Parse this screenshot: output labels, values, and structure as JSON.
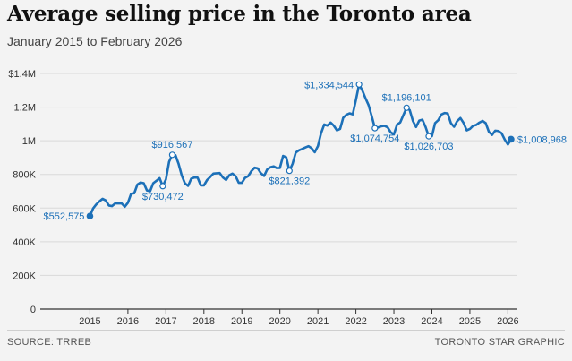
{
  "header": {
    "title": "Average selling price in the Toronto area",
    "subtitle": "January 2015 to February 2026"
  },
  "footer": {
    "source": "SOURCE: TRREB",
    "credit": "TORONTO STAR GRAPHIC"
  },
  "colors": {
    "line": "#1c70b8",
    "label": "#1c70b8",
    "grid": "#d9d9d9"
  },
  "chart_data": {
    "type": "line",
    "title": "Average selling price in the Toronto area",
    "subtitle": "January 2015 to February 2026",
    "xlabel": "",
    "ylabel": "",
    "xlim": [
      "2014-01",
      "2026-04"
    ],
    "ylim": [
      0,
      1400000
    ],
    "yticks": [
      0,
      200000,
      400000,
      600000,
      800000,
      1000000,
      1200000,
      1400000
    ],
    "ytick_labels": [
      "0",
      "200K",
      "400K",
      "600K",
      "800K",
      "1M",
      "1.2M",
      "$1.4M"
    ],
    "xtick_labels": [
      "2015",
      "2016",
      "2017",
      "2018",
      "2019",
      "2020",
      "2021",
      "2022",
      "2023",
      "2024",
      "2025",
      "2026"
    ],
    "grid": "horizontal",
    "series": [
      {
        "x": [
          "2015-01",
          "2015-02",
          "2015-03",
          "2015-04",
          "2015-05",
          "2015-06",
          "2015-07",
          "2015-08",
          "2015-09",
          "2015-10",
          "2015-11",
          "2015-12",
          "2016-01",
          "2016-02",
          "2016-03",
          "2016-04",
          "2016-05",
          "2016-06",
          "2016-07",
          "2016-08",
          "2016-09",
          "2016-10",
          "2016-11",
          "2016-12",
          "2017-01",
          "2017-02",
          "2017-03",
          "2017-04",
          "2017-05",
          "2017-06",
          "2017-07",
          "2017-08",
          "2017-09",
          "2017-10",
          "2017-11",
          "2017-12",
          "2018-01",
          "2018-02",
          "2018-03",
          "2018-04",
          "2018-05",
          "2018-06",
          "2018-07",
          "2018-08",
          "2018-09",
          "2018-10",
          "2018-11",
          "2018-12",
          "2019-01",
          "2019-02",
          "2019-03",
          "2019-04",
          "2019-05",
          "2019-06",
          "2019-07",
          "2019-08",
          "2019-09",
          "2019-10",
          "2019-11",
          "2019-12",
          "2020-01",
          "2020-02",
          "2020-03",
          "2020-04",
          "2020-05",
          "2020-06",
          "2020-07",
          "2020-08",
          "2020-09",
          "2020-10",
          "2020-11",
          "2020-12",
          "2021-01",
          "2021-02",
          "2021-03",
          "2021-04",
          "2021-05",
          "2021-06",
          "2021-07",
          "2021-08",
          "2021-09",
          "2021-10",
          "2021-11",
          "2021-12",
          "2022-01",
          "2022-02",
          "2022-03",
          "2022-04",
          "2022-05",
          "2022-06",
          "2022-07",
          "2022-08",
          "2022-09",
          "2022-10",
          "2022-11",
          "2022-12",
          "2023-01",
          "2023-02",
          "2023-03",
          "2023-04",
          "2023-05",
          "2023-06",
          "2023-07",
          "2023-08",
          "2023-09",
          "2023-10",
          "2023-11",
          "2023-12",
          "2024-01",
          "2024-02",
          "2024-03",
          "2024-04",
          "2024-05",
          "2024-06",
          "2024-07",
          "2024-08",
          "2024-09",
          "2024-10",
          "2024-11",
          "2024-12",
          "2025-01",
          "2025-02",
          "2025-03",
          "2025-04",
          "2025-05",
          "2025-06",
          "2025-07",
          "2025-08",
          "2025-09",
          "2025-10",
          "2025-11",
          "2025-12",
          "2026-01",
          "2026-02"
        ],
        "values": [
          552575,
          598000,
          622000,
          640000,
          655000,
          645000,
          615000,
          612000,
          628000,
          628000,
          628000,
          608000,
          632000,
          685000,
          688000,
          740000,
          752000,
          748000,
          705000,
          700000,
          748000,
          762000,
          778000,
          730472,
          770000,
          875000,
          916567,
          915000,
          863000,
          794000,
          747000,
          732000,
          775000,
          782000,
          781000,
          735000,
          735000,
          767000,
          785000,
          805000,
          807000,
          808000,
          782000,
          767000,
          795000,
          805000,
          790000,
          750000,
          750000,
          780000,
          790000,
          820000,
          840000,
          836000,
          807000,
          791000,
          830000,
          843000,
          848000,
          838000,
          839000,
          910000,
          902000,
          821392,
          863000,
          930000,
          943000,
          951000,
          960000,
          968000,
          956000,
          932000,
          968000,
          1045000,
          1097000,
          1090000,
          1108000,
          1090000,
          1062000,
          1070000,
          1137000,
          1155000,
          1163000,
          1157000,
          1242000,
          1334544,
          1300000,
          1254000,
          1212000,
          1146000,
          1074754,
          1079000,
          1086000,
          1089000,
          1080000,
          1050000,
          1038000,
          1096000,
          1109000,
          1153000,
          1196101,
          1182000,
          1118000,
          1082000,
          1120000,
          1125000,
          1082000,
          1026703,
          1026703,
          1105000,
          1122000,
          1156000,
          1165000,
          1162000,
          1105000,
          1083000,
          1117000,
          1135000,
          1106000,
          1062000,
          1070000,
          1089000,
          1094000,
          1108000,
          1118000,
          1105000,
          1053000,
          1035000,
          1060000,
          1058000,
          1045000,
          1007000,
          978000,
          1008968
        ]
      }
    ],
    "annotations": [
      {
        "x": "2015-01",
        "value": 552575,
        "label": "$552,575",
        "pos": "left"
      },
      {
        "x": "2016-12",
        "value": 730472,
        "label": "$730,472",
        "pos": "below"
      },
      {
        "x": "2017-03",
        "value": 916567,
        "label": "$916,567",
        "pos": "above"
      },
      {
        "x": "2020-04",
        "value": 821392,
        "label": "$821,392",
        "pos": "below"
      },
      {
        "x": "2022-02",
        "value": 1334544,
        "label": "$1,334,544",
        "pos": "left"
      },
      {
        "x": "2022-07",
        "value": 1074754,
        "label": "$1,074,754",
        "pos": "below"
      },
      {
        "x": "2023-05",
        "value": 1196101,
        "label": "$1,196,101",
        "pos": "above"
      },
      {
        "x": "2023-12",
        "value": 1026703,
        "label": "$1,026,703",
        "pos": "below"
      },
      {
        "x": "2026-02",
        "value": 1008968,
        "label": "$1,008,968",
        "pos": "right"
      }
    ]
  }
}
